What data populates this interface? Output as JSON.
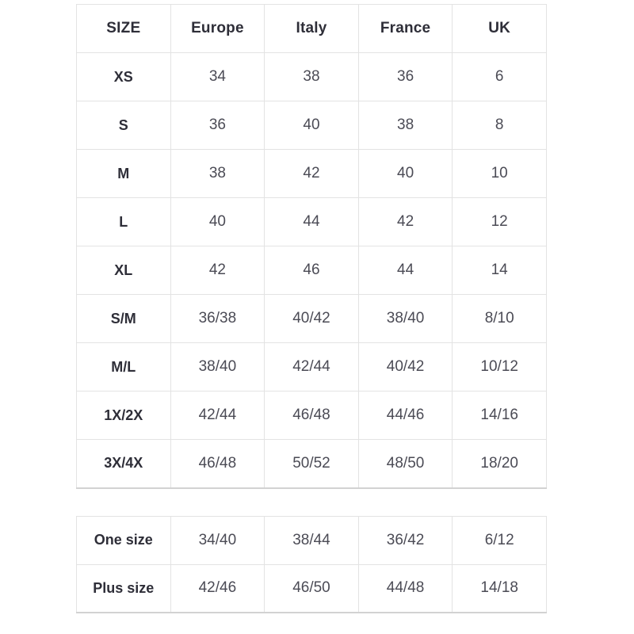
{
  "colors": {
    "background": "#ffffff",
    "border": "#e3e3e3",
    "bottom_border": "#d2d2d2",
    "header_text": "#2e2e38",
    "cell_text": "#4b4b55"
  },
  "size_chart": {
    "headers": [
      "SIZE",
      "Europe",
      "Italy",
      "France",
      "UK"
    ],
    "rows": [
      [
        "XS",
        "34",
        "38",
        "36",
        "6"
      ],
      [
        "S",
        "36",
        "40",
        "38",
        "8"
      ],
      [
        "M",
        "38",
        "42",
        "40",
        "10"
      ],
      [
        "L",
        "40",
        "44",
        "42",
        "12"
      ],
      [
        "XL",
        "42",
        "46",
        "44",
        "14"
      ],
      [
        "S/M",
        "36/38",
        "40/42",
        "38/40",
        "8/10"
      ],
      [
        "M/L",
        "38/40",
        "42/44",
        "40/42",
        "10/12"
      ],
      [
        "1X/2X",
        "42/44",
        "46/48",
        "44/46",
        "14/16"
      ],
      [
        "3X/4X",
        "46/48",
        "50/52",
        "48/50",
        "18/20"
      ]
    ]
  },
  "special_sizes": {
    "rows": [
      [
        "One size",
        "34/40",
        "38/44",
        "36/42",
        "6/12"
      ],
      [
        "Plus size",
        "42/46",
        "46/50",
        "44/48",
        "14/18"
      ]
    ]
  },
  "chart_data": {
    "type": "table",
    "title": "",
    "columns": [
      "SIZE",
      "Europe",
      "Italy",
      "France",
      "UK"
    ],
    "rows": [
      [
        "XS",
        "34",
        "38",
        "36",
        "6"
      ],
      [
        "S",
        "36",
        "40",
        "38",
        "8"
      ],
      [
        "M",
        "38",
        "42",
        "40",
        "10"
      ],
      [
        "L",
        "40",
        "44",
        "42",
        "12"
      ],
      [
        "XL",
        "42",
        "46",
        "44",
        "14"
      ],
      [
        "S/M",
        "36/38",
        "40/42",
        "38/40",
        "8/10"
      ],
      [
        "M/L",
        "38/40",
        "42/44",
        "40/42",
        "10/12"
      ],
      [
        "1X/2X",
        "42/44",
        "46/48",
        "44/46",
        "14/16"
      ],
      [
        "3X/4X",
        "46/48",
        "50/52",
        "48/50",
        "18/20"
      ],
      [
        "One size",
        "34/40",
        "38/44",
        "36/42",
        "6/12"
      ],
      [
        "Plus size",
        "42/46",
        "46/50",
        "44/48",
        "14/18"
      ]
    ],
    "layout_hints": {
      "two_tables": true,
      "second_table_rows": [
        "One size",
        "Plus size"
      ],
      "second_table_has_header": false,
      "grid": true
    }
  }
}
